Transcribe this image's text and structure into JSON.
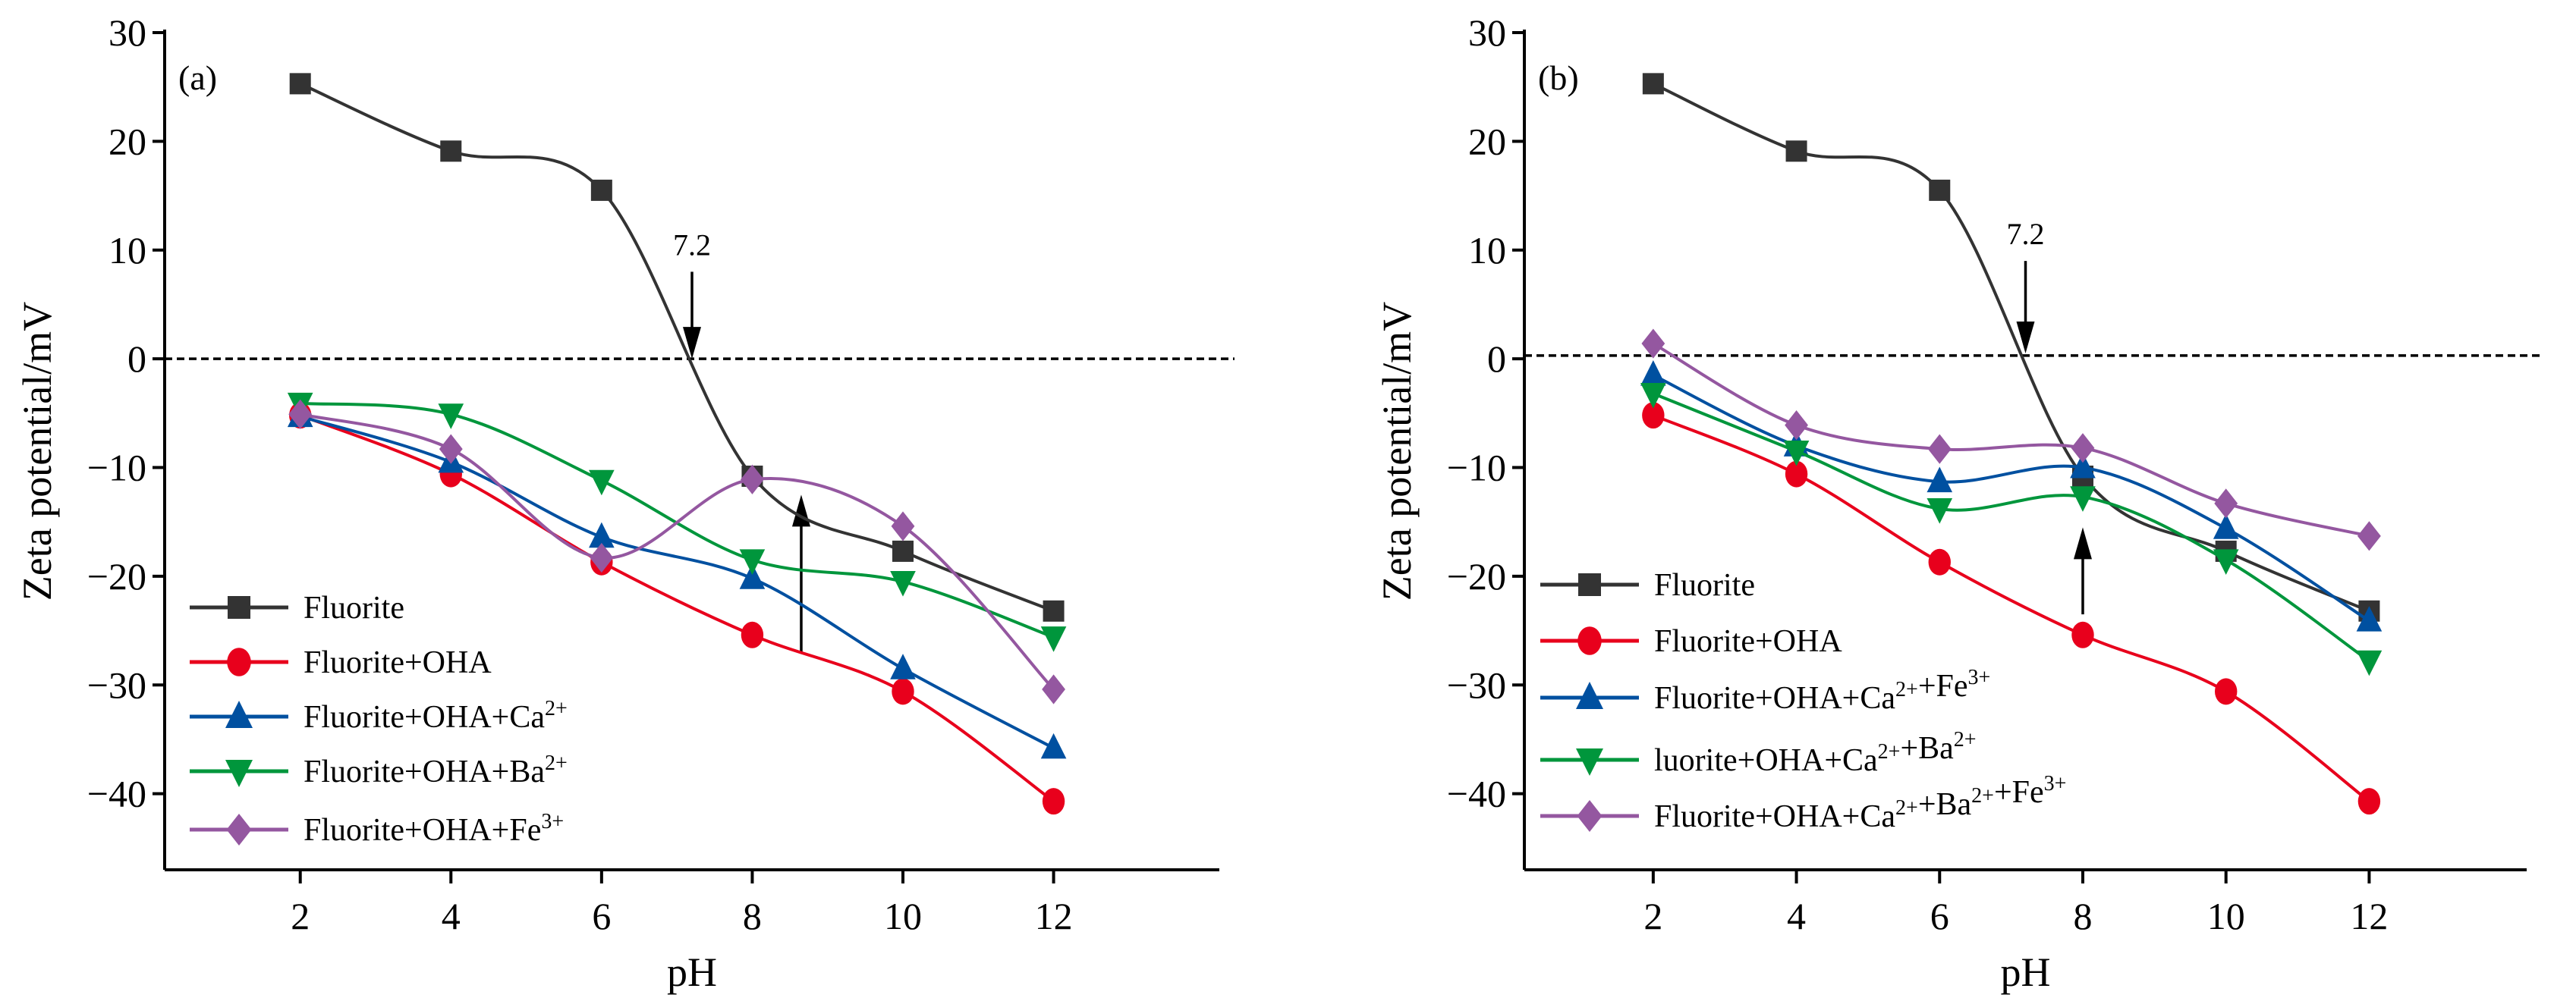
{
  "chart_data": [
    {
      "type": "line",
      "panel_label": "(a)",
      "xlabel": "pH",
      "ylabel": "Zeta potential/mV",
      "x": [
        2,
        4,
        6,
        8,
        10,
        12
      ],
      "xticks": [
        "2",
        "4",
        "6",
        "8",
        "10",
        "12"
      ],
      "yticks": [
        "30",
        "20",
        "10",
        "0",
        "−10",
        "−20",
        "−30",
        "−40"
      ],
      "xlim": [
        0.2,
        14.2
      ],
      "ylim": [
        -47,
        30
      ],
      "reference_line": {
        "y": 0,
        "style": "dashed"
      },
      "annotations": [
        {
          "text": "7.2",
          "arrow": "down",
          "x": 7.2,
          "from_y": 8,
          "to_y": 0
        },
        {
          "text": "",
          "arrow": "up",
          "x": 8.65,
          "from_y": -27,
          "to_y": -12.5
        }
      ],
      "legend_placement": "bottom-left",
      "series": [
        {
          "name": "Fluorite",
          "sup": "",
          "color": "#333333",
          "marker": "square",
          "values": [
            25.3,
            19.1,
            15.5,
            -10.8,
            -17.7,
            -23.2
          ]
        },
        {
          "name": "Fluorite+OHA",
          "sup": "",
          "color": "#e8001c",
          "marker": "circle",
          "values": [
            -5.2,
            -10.6,
            -18.7,
            -25.4,
            -30.6,
            -40.7
          ]
        },
        {
          "name": "Fluorite+OHA+Ca",
          "sup": "2+",
          "color": "#0050a0",
          "marker": "triangle-up",
          "values": [
            -5.3,
            -9.5,
            -16.4,
            -20.2,
            -28.5,
            -35.8
          ]
        },
        {
          "name": "Fluorite+OHA+Ba",
          "sup": "2+",
          "color": "#00963c",
          "marker": "triangle-down",
          "values": [
            -4.1,
            -5.1,
            -11.2,
            -18.5,
            -20.5,
            -25.6
          ]
        },
        {
          "name": "Fluorite+OHA+Fe",
          "sup": "3+",
          "color": "#9457a0",
          "marker": "diamond",
          "values": [
            -5.1,
            -8.3,
            -18.3,
            -11.1,
            -15.4,
            -30.4
          ]
        }
      ]
    },
    {
      "type": "line",
      "panel_label": "(b)",
      "xlabel": "pH",
      "ylabel": "Zeta potential/mV",
      "x": [
        2,
        4,
        6,
        8,
        10,
        12
      ],
      "xticks": [
        "2",
        "4",
        "6",
        "8",
        "10",
        "12"
      ],
      "yticks": [
        "30",
        "20",
        "10",
        "0",
        "−10",
        "−20",
        "−30",
        "−40"
      ],
      "xlim": [
        0.2,
        14.2
      ],
      "ylim": [
        -47,
        30
      ],
      "reference_line": {
        "y": 0.3,
        "style": "dashed"
      },
      "annotations": [
        {
          "text": "7.2",
          "arrow": "down",
          "x": 7.2,
          "from_y": 9,
          "to_y": 0.5
        },
        {
          "text": "",
          "arrow": "up",
          "x": 8,
          "from_y": -23.5,
          "to_y": -15.5
        }
      ],
      "legend_placement": "bottom-left",
      "series": [
        {
          "name": "Fluorite",
          "sup": "",
          "color": "#333333",
          "marker": "square",
          "values": [
            25.3,
            19.1,
            15.5,
            -10.8,
            -17.7,
            -23.2
          ]
        },
        {
          "name": "Fluorite+OHA",
          "sup": "",
          "color": "#e8001c",
          "marker": "circle",
          "values": [
            -5.2,
            -10.6,
            -18.7,
            -25.4,
            -30.6,
            -40.7
          ]
        },
        {
          "name": "Fluorite+OHA+Ca",
          "sup": "2+",
          "name2": "+Fe",
          "sup2": "3+",
          "color": "#0050a0",
          "marker": "triangle-up",
          "values": [
            -1.5,
            -8.0,
            -11.3,
            -10.0,
            -15.6,
            -24.1
          ]
        },
        {
          "name": " luorite+OHA+Ca",
          "sup": "2+",
          "name2": "+Ba",
          "sup2": "2+",
          "color": "#00963c",
          "marker": "triangle-down",
          "values": [
            -3.2,
            -8.5,
            -13.8,
            -12.7,
            -18.5,
            -27.8
          ]
        },
        {
          "name": "Fluorite+OHA+Ca",
          "sup": "2+",
          "name2": "+Ba",
          "sup2": "2+",
          "name3": "+Fe",
          "sup3": "3+",
          "color": "#9457a0",
          "marker": "diamond",
          "values": [
            1.4,
            -6.1,
            -8.3,
            -8.2,
            -13.3,
            -16.3
          ]
        }
      ]
    }
  ]
}
